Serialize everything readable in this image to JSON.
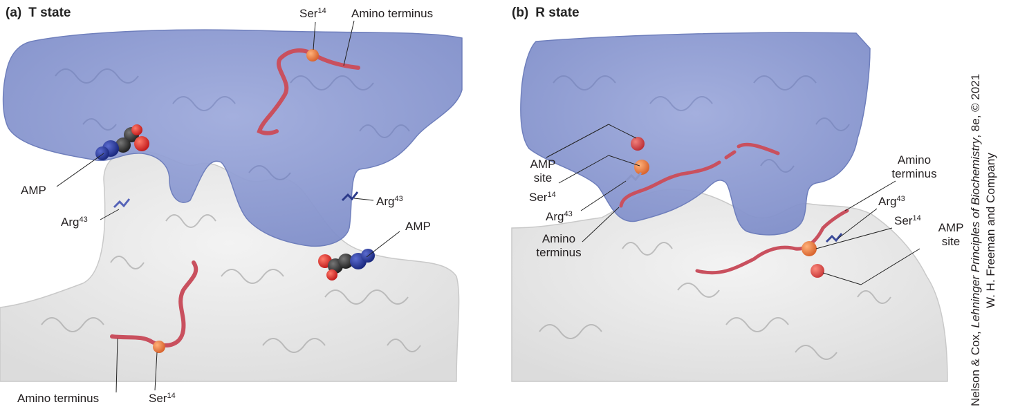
{
  "panel_a": {
    "letter": "(a)",
    "title": "T state",
    "labels": {
      "ser_top": {
        "name": "Ser",
        "sup": "14"
      },
      "amino_top": "Amino terminus",
      "amp_left": "AMP",
      "arg_left": {
        "name": "Arg",
        "sup": "43"
      },
      "arg_right": {
        "name": "Arg",
        "sup": "43"
      },
      "amp_right": "AMP",
      "amino_bottom": "Amino terminus",
      "ser_bottom": {
        "name": "Ser",
        "sup": "14"
      }
    }
  },
  "panel_b": {
    "letter": "(b)",
    "title": "R state",
    "labels": {
      "amp_site_left_1": "AMP",
      "amp_site_left_2": "site",
      "ser_left": {
        "name": "Ser",
        "sup": "14"
      },
      "arg_left": {
        "name": "Arg",
        "sup": "43"
      },
      "amino_left_1": "Amino",
      "amino_left_2": "terminus",
      "amino_right_1": "Amino",
      "amino_right_2": "terminus",
      "arg_right": {
        "name": "Arg",
        "sup": "43"
      },
      "ser_right": {
        "name": "Ser",
        "sup": "14"
      },
      "amp_site_right_1": "AMP",
      "amp_site_right_2": "site"
    }
  },
  "credit": {
    "line1_prefix": "Nelson & Cox, ",
    "line1_italic": "Lehninger Principles of Biochemistry",
    "line1_suffix": ", 8e, © 2021",
    "line2": "W. H. Freeman and Company"
  },
  "colors": {
    "subunit_blue": "#8d9ad0",
    "subunit_white": "#ececec",
    "amino_terminus": "#c9505e",
    "ser_sphere": "#e07a45",
    "amp_carbon": "#3a3a3a",
    "amp_nitrogen": "#2b3a9c",
    "amp_oxygen": "#d42a2a"
  }
}
